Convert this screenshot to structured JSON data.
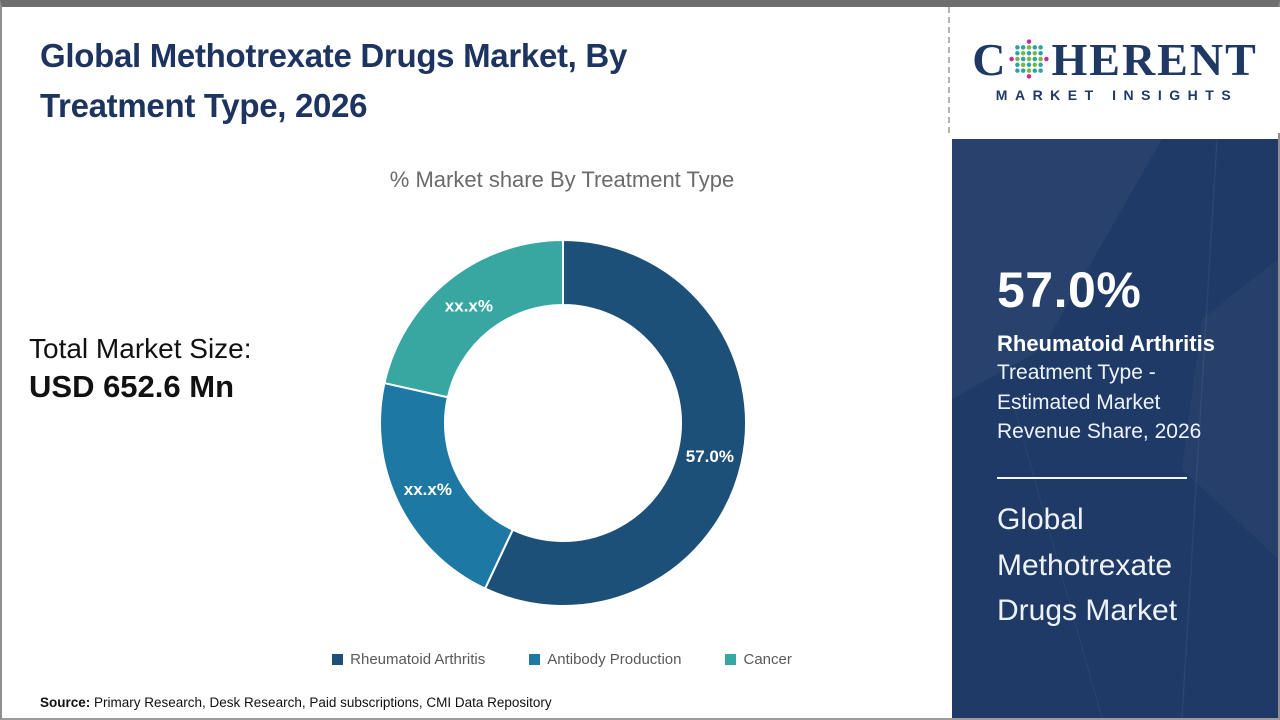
{
  "header": {
    "title": "Global Methotrexate Drugs Market, By Treatment Type, 2026"
  },
  "logo": {
    "word_start": "C",
    "word_end": "HERENT",
    "subtitle": "MARKET INSIGHTS",
    "brand_color": "#1f3864",
    "globe_colors": {
      "magenta": "#c22f8f",
      "teal": "#2fa3a0",
      "green": "#7ab648"
    }
  },
  "chart_data": {
    "type": "pie",
    "donut": true,
    "title": "% Market share By Treatment Type",
    "categories": [
      "Rheumatoid Arthritis",
      "Antibody Production",
      "Cancer"
    ],
    "values": [
      57.0,
      21.5,
      21.5
    ],
    "display_labels": [
      "57.0%",
      "xx.x%",
      "xx.x%"
    ],
    "colors": [
      "#1d5078",
      "#1e78a4",
      "#38a7a2"
    ],
    "legend_position": "bottom",
    "start_angle_deg": 0,
    "label_color": "#ffffff"
  },
  "total_market": {
    "label": "Total Market Size:",
    "value": "USD 652.6 Mn"
  },
  "sidebar": {
    "stat_value": "57.0%",
    "stat_title": "Rheumatoid Arthritis",
    "stat_desc": "Treatment Type - Estimated Market Revenue Share, 2026",
    "panel_title": "Global Methotrexate Drugs Market",
    "panel_color": "#1f3a67"
  },
  "source": {
    "label": "Source:",
    "text": " Primary Research, Desk Research, Paid subscriptions, CMI Data Repository"
  }
}
